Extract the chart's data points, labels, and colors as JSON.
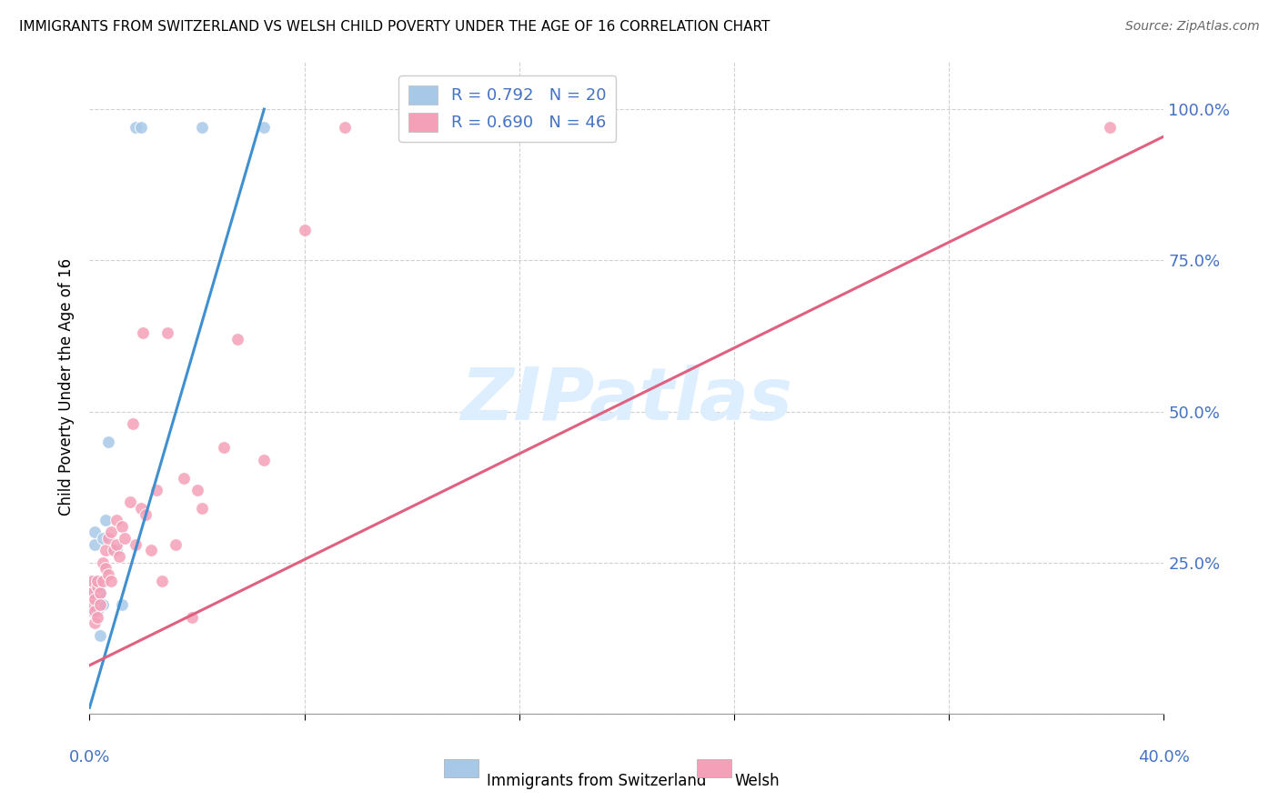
{
  "title": "IMMIGRANTS FROM SWITZERLAND VS WELSH CHILD POVERTY UNDER THE AGE OF 16 CORRELATION CHART",
  "source": "Source: ZipAtlas.com",
  "ylabel": "Child Poverty Under the Age of 16",
  "yticks": [
    0.0,
    0.25,
    0.5,
    0.75,
    1.0
  ],
  "xticks": [
    0.0,
    0.08,
    0.16,
    0.24,
    0.32,
    0.4
  ],
  "xlim": [
    0.0,
    0.4
  ],
  "ylim": [
    0.0,
    1.08
  ],
  "legend_labels": [
    "R = 0.792   N = 20",
    "R = 0.690   N = 46"
  ],
  "swiss_scatter_x": [
    0.001,
    0.001,
    0.002,
    0.002,
    0.002,
    0.003,
    0.003,
    0.003,
    0.004,
    0.004,
    0.005,
    0.005,
    0.006,
    0.007,
    0.01,
    0.012,
    0.017,
    0.019,
    0.042,
    0.065
  ],
  "swiss_scatter_y": [
    0.2,
    0.17,
    0.22,
    0.28,
    0.3,
    0.18,
    0.21,
    0.17,
    0.2,
    0.13,
    0.29,
    0.18,
    0.32,
    0.45,
    0.27,
    0.18,
    0.97,
    0.97,
    0.97,
    0.97
  ],
  "welsh_scatter_x": [
    0.001,
    0.001,
    0.001,
    0.002,
    0.002,
    0.002,
    0.003,
    0.003,
    0.003,
    0.004,
    0.004,
    0.005,
    0.005,
    0.006,
    0.006,
    0.007,
    0.007,
    0.008,
    0.008,
    0.009,
    0.01,
    0.01,
    0.011,
    0.012,
    0.013,
    0.015,
    0.016,
    0.017,
    0.019,
    0.02,
    0.021,
    0.023,
    0.025,
    0.027,
    0.029,
    0.032,
    0.035,
    0.038,
    0.04,
    0.042,
    0.05,
    0.055,
    0.065,
    0.08,
    0.095,
    0.38
  ],
  "welsh_scatter_y": [
    0.18,
    0.2,
    0.22,
    0.15,
    0.19,
    0.17,
    0.21,
    0.16,
    0.22,
    0.2,
    0.18,
    0.25,
    0.22,
    0.24,
    0.27,
    0.29,
    0.23,
    0.3,
    0.22,
    0.27,
    0.28,
    0.32,
    0.26,
    0.31,
    0.29,
    0.35,
    0.48,
    0.28,
    0.34,
    0.63,
    0.33,
    0.27,
    0.37,
    0.22,
    0.63,
    0.28,
    0.39,
    0.16,
    0.37,
    0.34,
    0.44,
    0.62,
    0.42,
    0.8,
    0.97,
    0.97
  ],
  "swiss_line_x": [
    0.0,
    0.065
  ],
  "swiss_line_y": [
    0.01,
    1.0
  ],
  "welsh_line_x": [
    0.0,
    0.4
  ],
  "welsh_line_y": [
    0.08,
    0.955
  ],
  "swiss_scatter_color": "#a8c8e8",
  "welsh_scatter_color": "#f4a0b8",
  "swiss_line_color": "#4090d0",
  "welsh_line_color": "#e06080",
  "legend_swiss_color": "#a8c8e8",
  "legend_welsh_color": "#f4a0b8",
  "axis_color": "#4472c4",
  "background_color": "#ffffff",
  "watermark_text": "ZIPatlas",
  "watermark_color": "#ddeeff",
  "grid_color": "#cccccc",
  "title_fontsize": 11,
  "scatter_size": 100,
  "legend_fontsize": 13,
  "axis_label_fontsize": 13
}
